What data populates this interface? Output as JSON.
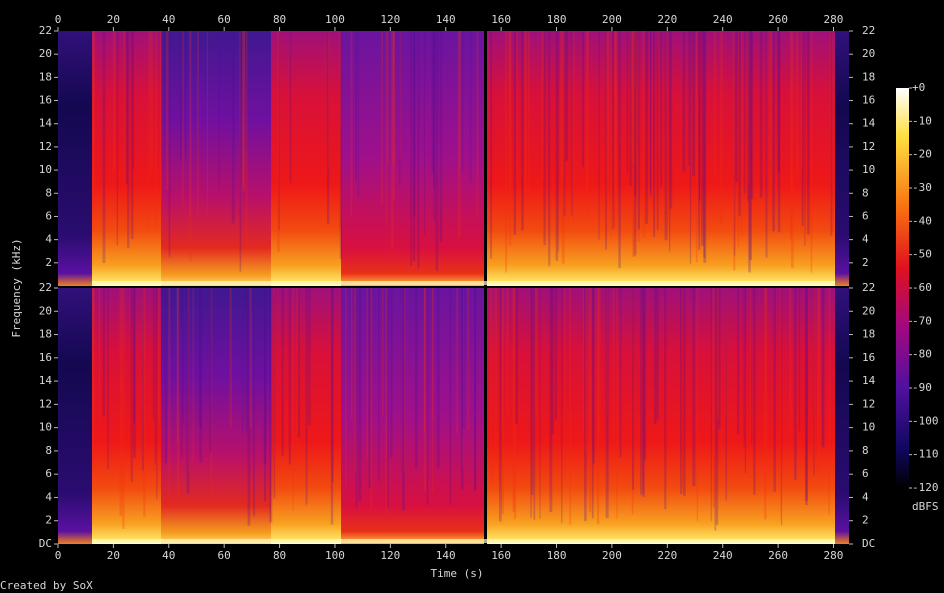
{
  "chart_data": {
    "type": "spectrogram",
    "x_label": "Time (s)",
    "y_label": "Frequency (kHz)",
    "xlim": [
      0,
      285.6
    ],
    "xticks": [
      0,
      20,
      40,
      60,
      80,
      100,
      120,
      140,
      160,
      180,
      200,
      220,
      240,
      260,
      280
    ],
    "channels": [
      {
        "ylim": [
          0,
          22
        ],
        "yticks": [
          2,
          4,
          6,
          8,
          10,
          12,
          14,
          16,
          18,
          20,
          22
        ]
      },
      {
        "ylim": [
          0,
          22
        ],
        "yticks": [
          {
            "value": 0,
            "label": "DC"
          },
          2,
          4,
          6,
          8,
          10,
          12,
          14,
          16,
          18,
          20,
          22
        ]
      }
    ],
    "colorbar": {
      "label": "dBFS",
      "lim": [
        -120,
        0
      ],
      "ticks": [
        {
          "value": 0,
          "label": "+0"
        },
        -10,
        -20,
        -30,
        -40,
        -50,
        -60,
        -70,
        -80,
        -90,
        -100,
        -110,
        -120
      ]
    },
    "footer": "Created by SoX"
  }
}
